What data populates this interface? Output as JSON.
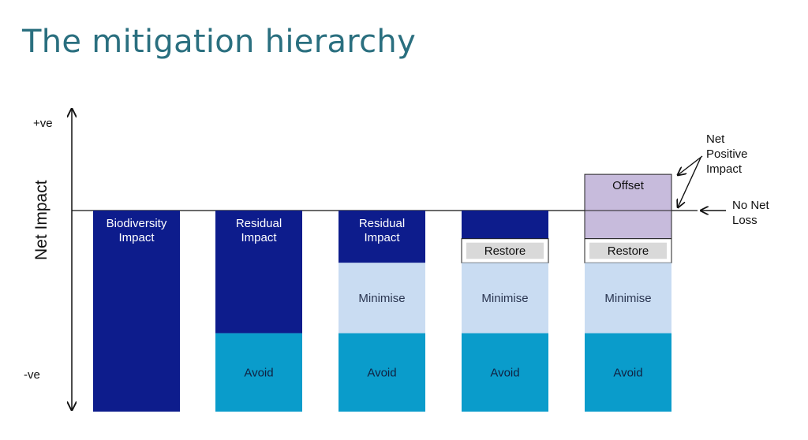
{
  "title": "The mitigation hierarchy",
  "axis": {
    "label": "Net Impact",
    "top": "+ve",
    "bottom": "-ve"
  },
  "annotations": {
    "net_positive": [
      "Net",
      "Positive",
      "Impact"
    ],
    "no_net_loss": [
      "No Net",
      "Loss"
    ]
  },
  "columns": [
    {
      "segments": [
        {
          "role": "impact",
          "label": [
            "Biodiversity",
            "Impact"
          ],
          "from": 0,
          "to": -1.0
        }
      ]
    },
    {
      "segments": [
        {
          "role": "impact",
          "label": [
            "Residual",
            "Impact"
          ],
          "from": 0,
          "to": -0.61
        },
        {
          "role": "avoid",
          "label": [
            "Avoid"
          ],
          "from": -0.61,
          "to": -1.0
        }
      ]
    },
    {
      "segments": [
        {
          "role": "impact",
          "label": [
            "Residual",
            "Impact"
          ],
          "from": 0,
          "to": -0.26
        },
        {
          "role": "minimise",
          "label": [
            "Minimise"
          ],
          "from": -0.26,
          "to": -0.61
        },
        {
          "role": "avoid",
          "label": [
            "Avoid"
          ],
          "from": -0.61,
          "to": -1.0
        }
      ]
    },
    {
      "segments": [
        {
          "role": "impact",
          "label": [],
          "from": 0,
          "to": -0.14
        },
        {
          "role": "restore",
          "label": [
            "Restore"
          ],
          "from": -0.14,
          "to": -0.26
        },
        {
          "role": "minimise",
          "label": [
            "Minimise"
          ],
          "from": -0.26,
          "to": -0.61
        },
        {
          "role": "avoid",
          "label": [
            "Avoid"
          ],
          "from": -0.61,
          "to": -1.0
        }
      ]
    },
    {
      "segments": [
        {
          "role": "offset",
          "label": [
            "Offset"
          ],
          "from": 0.18,
          "to": 0
        },
        {
          "role": "offset_below",
          "label": [],
          "from": 0,
          "to": -0.14
        },
        {
          "role": "restore",
          "label": [
            "Restore"
          ],
          "from": -0.14,
          "to": -0.26
        },
        {
          "role": "minimise",
          "label": [
            "Minimise"
          ],
          "from": -0.26,
          "to": -0.61
        },
        {
          "role": "avoid",
          "label": [
            "Avoid"
          ],
          "from": -0.61,
          "to": -1.0
        }
      ]
    }
  ],
  "colors": {
    "impact": "#0d1c8c",
    "avoid": "#0a9ccb",
    "minimise": "#c9dcf2",
    "restore": "#d9d9d9",
    "offset": "#c7bbdc",
    "offset_below": "#c7bbdc",
    "title": "#2a6f7f"
  }
}
